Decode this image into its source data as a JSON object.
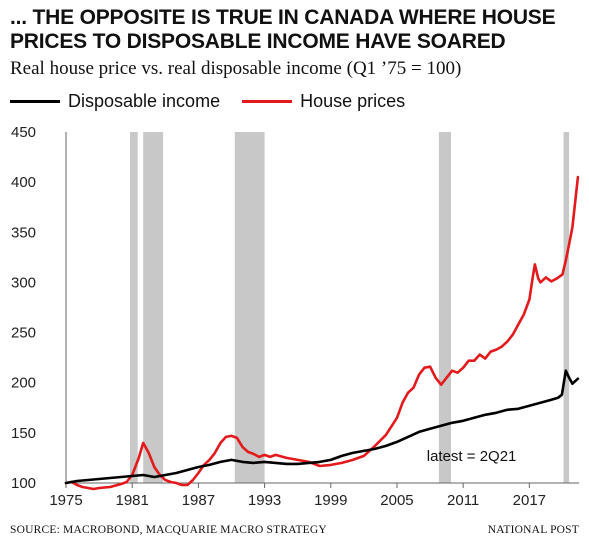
{
  "title": "... THE OPPOSITE IS TRUE IN CANADA WHERE HOUSE PRICES TO DISPOSABLE INCOME HAVE SOARED",
  "subtitle": "Real house price vs. real disposable income (Q1 ’75 = 100)",
  "source": "SOURCE: MACROBOND, MACQUARIE MACRO STRATEGY",
  "credit": "NATIONAL POST",
  "colors": {
    "income": "#000000",
    "house": "#e3191c",
    "recession": "#c8c8c8",
    "axis": "#666666"
  },
  "chart_data": {
    "type": "line",
    "xlim": [
      1975,
      2021.5
    ],
    "ylim": [
      100,
      450
    ],
    "x_ticks": [
      1975,
      1981,
      1987,
      1993,
      1999,
      2005,
      2011,
      2017
    ],
    "y_ticks": [
      100,
      150,
      200,
      250,
      300,
      350,
      400,
      450
    ],
    "grid": false,
    "legend": "top-left",
    "annotation": "latest = 2Q21",
    "recessions": [
      [
        1980.8,
        1981.5
      ],
      [
        1982.0,
        1983.8
      ],
      [
        1990.3,
        1993.0
      ],
      [
        2008.8,
        2009.9
      ],
      [
        2020.1,
        2020.6
      ]
    ],
    "series": [
      {
        "name": "Disposable income",
        "color_key": "income",
        "points": [
          [
            1975,
            100
          ],
          [
            1976,
            102
          ],
          [
            1977,
            103
          ],
          [
            1978,
            104
          ],
          [
            1979,
            105
          ],
          [
            1980,
            106
          ],
          [
            1981,
            107
          ],
          [
            1982,
            108
          ],
          [
            1983,
            106
          ],
          [
            1984,
            108
          ],
          [
            1985,
            110
          ],
          [
            1986,
            113
          ],
          [
            1987,
            116
          ],
          [
            1988,
            118
          ],
          [
            1989,
            121
          ],
          [
            1990,
            123
          ],
          [
            1991,
            121
          ],
          [
            1992,
            120
          ],
          [
            1993,
            121
          ],
          [
            1994,
            120
          ],
          [
            1995,
            119
          ],
          [
            1996,
            119
          ],
          [
            1997,
            120
          ],
          [
            1998,
            121
          ],
          [
            1999,
            123
          ],
          [
            2000,
            127
          ],
          [
            2001,
            130
          ],
          [
            2002,
            132
          ],
          [
            2003,
            134
          ],
          [
            2004,
            137
          ],
          [
            2005,
            141
          ],
          [
            2006,
            146
          ],
          [
            2007,
            151
          ],
          [
            2008,
            154
          ],
          [
            2009,
            157
          ],
          [
            2010,
            160
          ],
          [
            2011,
            162
          ],
          [
            2012,
            165
          ],
          [
            2013,
            168
          ],
          [
            2014,
            170
          ],
          [
            2015,
            173
          ],
          [
            2016,
            174
          ],
          [
            2017,
            177
          ],
          [
            2018,
            180
          ],
          [
            2019,
            183
          ],
          [
            2019.6,
            185
          ],
          [
            2019.95,
            188
          ],
          [
            2020.3,
            212
          ],
          [
            2020.6,
            205
          ],
          [
            2020.9,
            199
          ],
          [
            2021.2,
            202
          ],
          [
            2021.4,
            204
          ]
        ]
      },
      {
        "name": "House prices",
        "color_key": "house",
        "points": [
          [
            1975,
            100
          ],
          [
            1975.5,
            101
          ],
          [
            1976,
            98
          ],
          [
            1976.5,
            96
          ],
          [
            1977,
            95
          ],
          [
            1977.5,
            94
          ],
          [
            1978,
            95
          ],
          [
            1979,
            96
          ],
          [
            1980,
            99
          ],
          [
            1980.5,
            101
          ],
          [
            1981,
            108
          ],
          [
            1981.6,
            125
          ],
          [
            1982,
            140
          ],
          [
            1982.5,
            130
          ],
          [
            1983,
            116
          ],
          [
            1983.5,
            108
          ],
          [
            1984,
            103
          ],
          [
            1984.5,
            101
          ],
          [
            1985,
            100
          ],
          [
            1985.5,
            98
          ],
          [
            1986,
            98
          ],
          [
            1986.5,
            103
          ],
          [
            1987,
            110
          ],
          [
            1987.5,
            118
          ],
          [
            1988,
            123
          ],
          [
            1988.5,
            130
          ],
          [
            1989,
            140
          ],
          [
            1989.5,
            146
          ],
          [
            1990,
            147
          ],
          [
            1990.5,
            145
          ],
          [
            1991,
            136
          ],
          [
            1991.5,
            131
          ],
          [
            1992,
            129
          ],
          [
            1992.5,
            126
          ],
          [
            1993,
            128
          ],
          [
            1993.5,
            126
          ],
          [
            1994,
            128
          ],
          [
            1995,
            125
          ],
          [
            1996,
            123
          ],
          [
            1997,
            121
          ],
          [
            1998,
            117
          ],
          [
            1999,
            118
          ],
          [
            2000,
            120
          ],
          [
            2001,
            123
          ],
          [
            2002,
            127
          ],
          [
            2003,
            137
          ],
          [
            2004,
            148
          ],
          [
            2005,
            165
          ],
          [
            2005.5,
            180
          ],
          [
            2006,
            190
          ],
          [
            2006.5,
            195
          ],
          [
            2007,
            208
          ],
          [
            2007.5,
            215
          ],
          [
            2008,
            216
          ],
          [
            2008.5,
            205
          ],
          [
            2009,
            198
          ],
          [
            2009.5,
            205
          ],
          [
            2010,
            212
          ],
          [
            2010.5,
            210
          ],
          [
            2011,
            215
          ],
          [
            2011.5,
            222
          ],
          [
            2012,
            222
          ],
          [
            2012.5,
            228
          ],
          [
            2013,
            224
          ],
          [
            2013.5,
            231
          ],
          [
            2014,
            233
          ],
          [
            2014.5,
            236
          ],
          [
            2015,
            241
          ],
          [
            2015.5,
            248
          ],
          [
            2016,
            258
          ],
          [
            2016.5,
            268
          ],
          [
            2017,
            283
          ],
          [
            2017.3,
            305
          ],
          [
            2017.5,
            318
          ],
          [
            2017.8,
            304
          ],
          [
            2018,
            300
          ],
          [
            2018.5,
            305
          ],
          [
            2019,
            301
          ],
          [
            2019.5,
            304
          ],
          [
            2020,
            308
          ],
          [
            2020.3,
            322
          ],
          [
            2020.6,
            338
          ],
          [
            2020.9,
            355
          ],
          [
            2021.2,
            385
          ],
          [
            2021.4,
            405
          ]
        ]
      }
    ]
  }
}
